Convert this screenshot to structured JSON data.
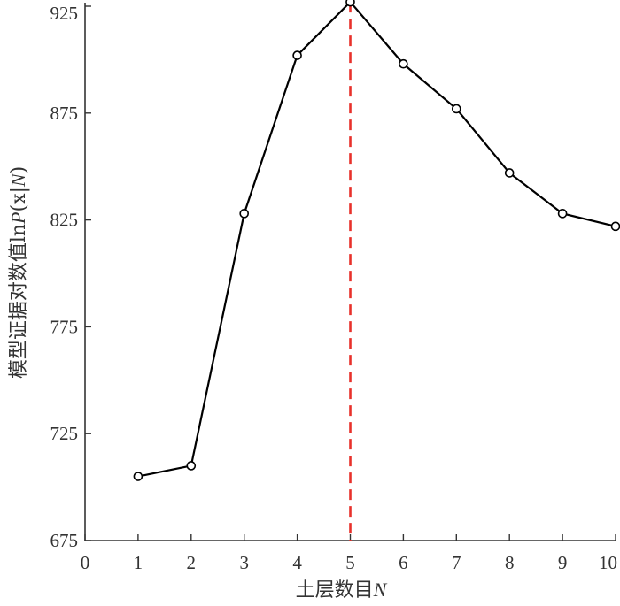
{
  "chart_data": {
    "type": "line",
    "title": "",
    "xlabel": "土层数目N",
    "xlabel_parts": [
      "土层数目",
      "N"
    ],
    "ylabel": "模型证据对数值lnP(x|N)",
    "ylabel_parts": [
      "模型证据对数值ln",
      "P",
      "(x|",
      "N",
      ")"
    ],
    "xlim": [
      0,
      10
    ],
    "ylim": [
      675,
      925
    ],
    "xticks": [
      0,
      1,
      2,
      3,
      4,
      5,
      6,
      7,
      8,
      9,
      10
    ],
    "yticks": [
      675,
      725,
      775,
      825,
      875,
      925
    ],
    "grid": false,
    "series": [
      {
        "x": [
          1,
          2,
          3,
          4,
          5,
          6,
          7,
          8,
          9,
          10
        ],
        "values": [
          705,
          710,
          828,
          902,
          927,
          898,
          877,
          847,
          828,
          822
        ],
        "color": "#000000",
        "marker": "open-circle"
      }
    ],
    "reference_line": {
      "x": 5,
      "color": "#e8312b",
      "style": "dashed"
    }
  }
}
